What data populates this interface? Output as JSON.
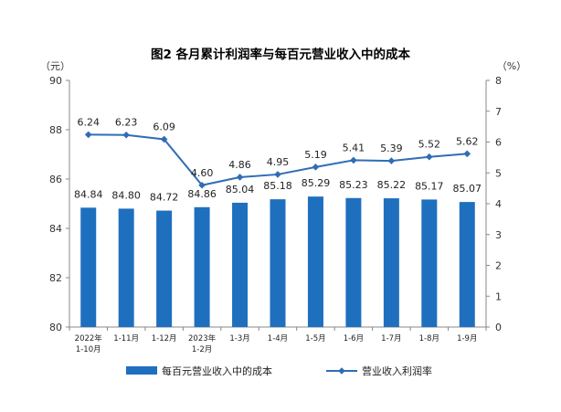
{
  "chart_data": {
    "type": "bar",
    "title": "图2  各月累计利润率与每百元营业收入中的成本",
    "left_unit": "（元）",
    "right_unit": "（%）",
    "categories": [
      [
        "2022年",
        "1-10月"
      ],
      [
        "1-11月"
      ],
      [
        "1-12月"
      ],
      [
        "2023年",
        "1-2月"
      ],
      [
        "1-3月"
      ],
      [
        "1-4月"
      ],
      [
        "1-5月"
      ],
      [
        "1-6月"
      ],
      [
        "1-7月"
      ],
      [
        "1-8月"
      ],
      [
        "1-9月"
      ]
    ],
    "left_axis": {
      "min": 80,
      "max": 90,
      "ticks": [
        "80",
        "82",
        "84",
        "86",
        "88",
        "90"
      ]
    },
    "right_axis": {
      "min": 0,
      "max": 8,
      "ticks": [
        "0",
        "1",
        "2",
        "3",
        "4",
        "5",
        "6",
        "7",
        "8"
      ]
    },
    "series": [
      {
        "name": "每百元营业收入中的成本",
        "type": "bar",
        "axis": "left",
        "color": "#1f6fbf",
        "values": [
          84.84,
          84.8,
          84.72,
          84.86,
          85.04,
          85.18,
          85.29,
          85.23,
          85.22,
          85.17,
          85.07
        ],
        "labels": [
          "84.84",
          "84.80",
          "84.72",
          "84.86",
          "85.04",
          "85.18",
          "85.29",
          "85.23",
          "85.22",
          "85.17",
          "85.07"
        ]
      },
      {
        "name": "营业收入利润率",
        "type": "line",
        "axis": "right",
        "color": "#2f6db5",
        "values": [
          6.24,
          6.23,
          6.09,
          4.6,
          4.86,
          4.95,
          5.19,
          5.41,
          5.39,
          5.52,
          5.62
        ],
        "labels": [
          "6.24",
          "6.23",
          "6.09",
          "4.60",
          "4.86",
          "4.95",
          "5.19",
          "5.41",
          "5.39",
          "5.52",
          "5.62"
        ]
      }
    ],
    "legend_position": "bottom"
  }
}
